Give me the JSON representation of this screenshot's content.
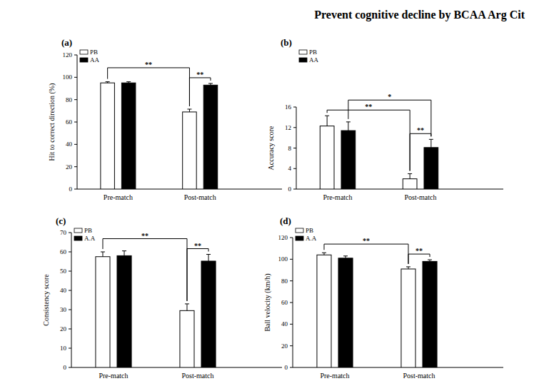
{
  "header": "Prevent cognitive decline by BCAA Arg Cit",
  "chart_data": [
    {
      "type": "bar",
      "title": "(a)",
      "y_label": "Hit to correct direction (%)",
      "categories": [
        "Pre-match",
        "Post-match"
      ],
      "series": [
        {
          "name": "PB",
          "color": "#ffffff",
          "values": [
            95,
            69
          ],
          "errors": [
            1,
            2.5
          ]
        },
        {
          "name": "AA",
          "color": "#000000",
          "values": [
            95,
            93
          ],
          "errors": [
            1,
            1.5
          ]
        }
      ],
      "ylim": [
        0,
        120
      ],
      "yticks": [
        0,
        20,
        40,
        60,
        80,
        100,
        120
      ],
      "legend": "upper left",
      "annotations": [
        {
          "text": "**",
          "from": [
            "PB",
            "Pre-match"
          ],
          "to": [
            "PB",
            "Post-match"
          ]
        },
        {
          "text": "**",
          "from": [
            "PB",
            "Post-match"
          ],
          "to": [
            "AA",
            "Post-match"
          ]
        }
      ]
    },
    {
      "type": "bar",
      "title": "(b)",
      "y_label": "Accuracy score",
      "categories": [
        "Pre-match",
        "Post-match"
      ],
      "series": [
        {
          "name": "PB",
          "color": "#ffffff",
          "values": [
            12.3,
            2.0
          ],
          "errors": [
            2.0,
            1.0
          ]
        },
        {
          "name": "AA",
          "color": "#000000",
          "values": [
            11.4,
            8.1
          ],
          "errors": [
            1.7,
            1.6
          ]
        }
      ],
      "ylim": [
        0,
        16
      ],
      "yticks": [
        0,
        4,
        8,
        12,
        16
      ],
      "legend": "upper left",
      "annotations": [
        {
          "text": "**",
          "from": [
            "PB",
            "Pre-match"
          ],
          "to": [
            "PB",
            "Post-match"
          ]
        },
        {
          "text": "*",
          "from": [
            "AA",
            "Pre-match"
          ],
          "to": [
            "AA",
            "Post-match"
          ]
        },
        {
          "text": "**",
          "from": [
            "PB",
            "Post-match"
          ],
          "to": [
            "AA",
            "Post-match"
          ]
        }
      ]
    },
    {
      "type": "bar",
      "title": "(c)",
      "y_label": "Consistency score",
      "categories": [
        "Pre-match",
        "Post-match"
      ],
      "series": [
        {
          "name": "PB",
          "color": "#ffffff",
          "values": [
            57.5,
            29.5
          ],
          "errors": [
            2.5,
            3.5
          ]
        },
        {
          "name": "A.A",
          "color": "#000000",
          "values": [
            58,
            55.2
          ],
          "errors": [
            2.5,
            3.5
          ]
        }
      ],
      "ylim": [
        0,
        70
      ],
      "yticks": [
        0,
        10,
        20,
        30,
        40,
        50,
        60,
        70
      ],
      "legend": "upper left",
      "annotations": [
        {
          "text": "**",
          "from": [
            "PB",
            "Pre-match"
          ],
          "to": [
            "PB",
            "Post-match"
          ]
        },
        {
          "text": "**",
          "from": [
            "PB",
            "Post-match"
          ],
          "to": [
            "A.A",
            "Post-match"
          ]
        }
      ]
    },
    {
      "type": "bar",
      "title": "(d)",
      "y_label": "Ball velocity (km/h)",
      "categories": [
        "Pre-match",
        "Post-match"
      ],
      "series": [
        {
          "name": "PB",
          "color": "#ffffff",
          "values": [
            104,
            91
          ],
          "errors": [
            2,
            2
          ]
        },
        {
          "name": "A.A",
          "color": "#000000",
          "values": [
            101,
            98
          ],
          "errors": [
            2,
            1.5
          ]
        }
      ],
      "ylim": [
        0,
        120
      ],
      "yticks": [
        0,
        20,
        40,
        60,
        80,
        100,
        120
      ],
      "legend": "upper left",
      "annotations": [
        {
          "text": "**",
          "from": [
            "PB",
            "Pre-match"
          ],
          "to": [
            "PB",
            "Post-match"
          ]
        },
        {
          "text": "**",
          "from": [
            "PB",
            "Post-match"
          ],
          "to": [
            "A.A",
            "Post-match"
          ]
        }
      ]
    }
  ]
}
